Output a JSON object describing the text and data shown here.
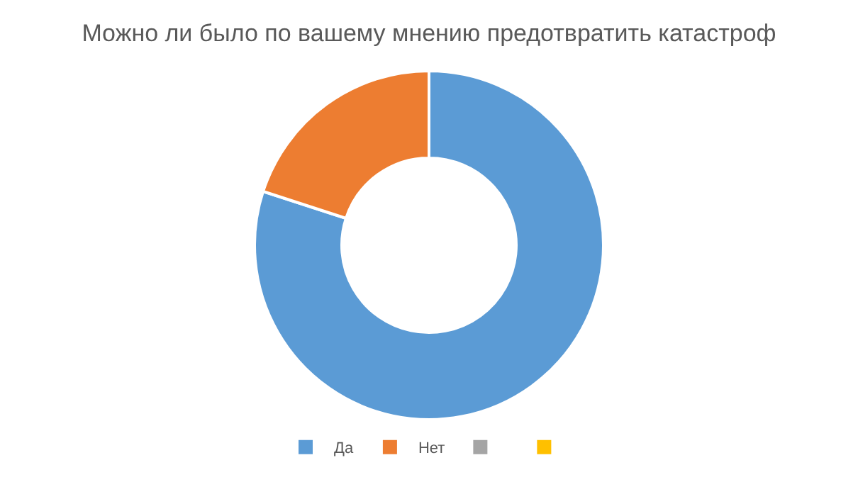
{
  "chart_data": {
    "type": "donut",
    "title": "Можно ли было по вашему мнению предотвратить катастроф",
    "categories": [
      "Да",
      "Нет",
      null,
      null
    ],
    "values": [
      80,
      20,
      0,
      0
    ],
    "colors": [
      "#5b9bd5",
      "#ed7d31",
      "#a5a5a5",
      "#ffc000"
    ],
    "legend": "bottom"
  }
}
